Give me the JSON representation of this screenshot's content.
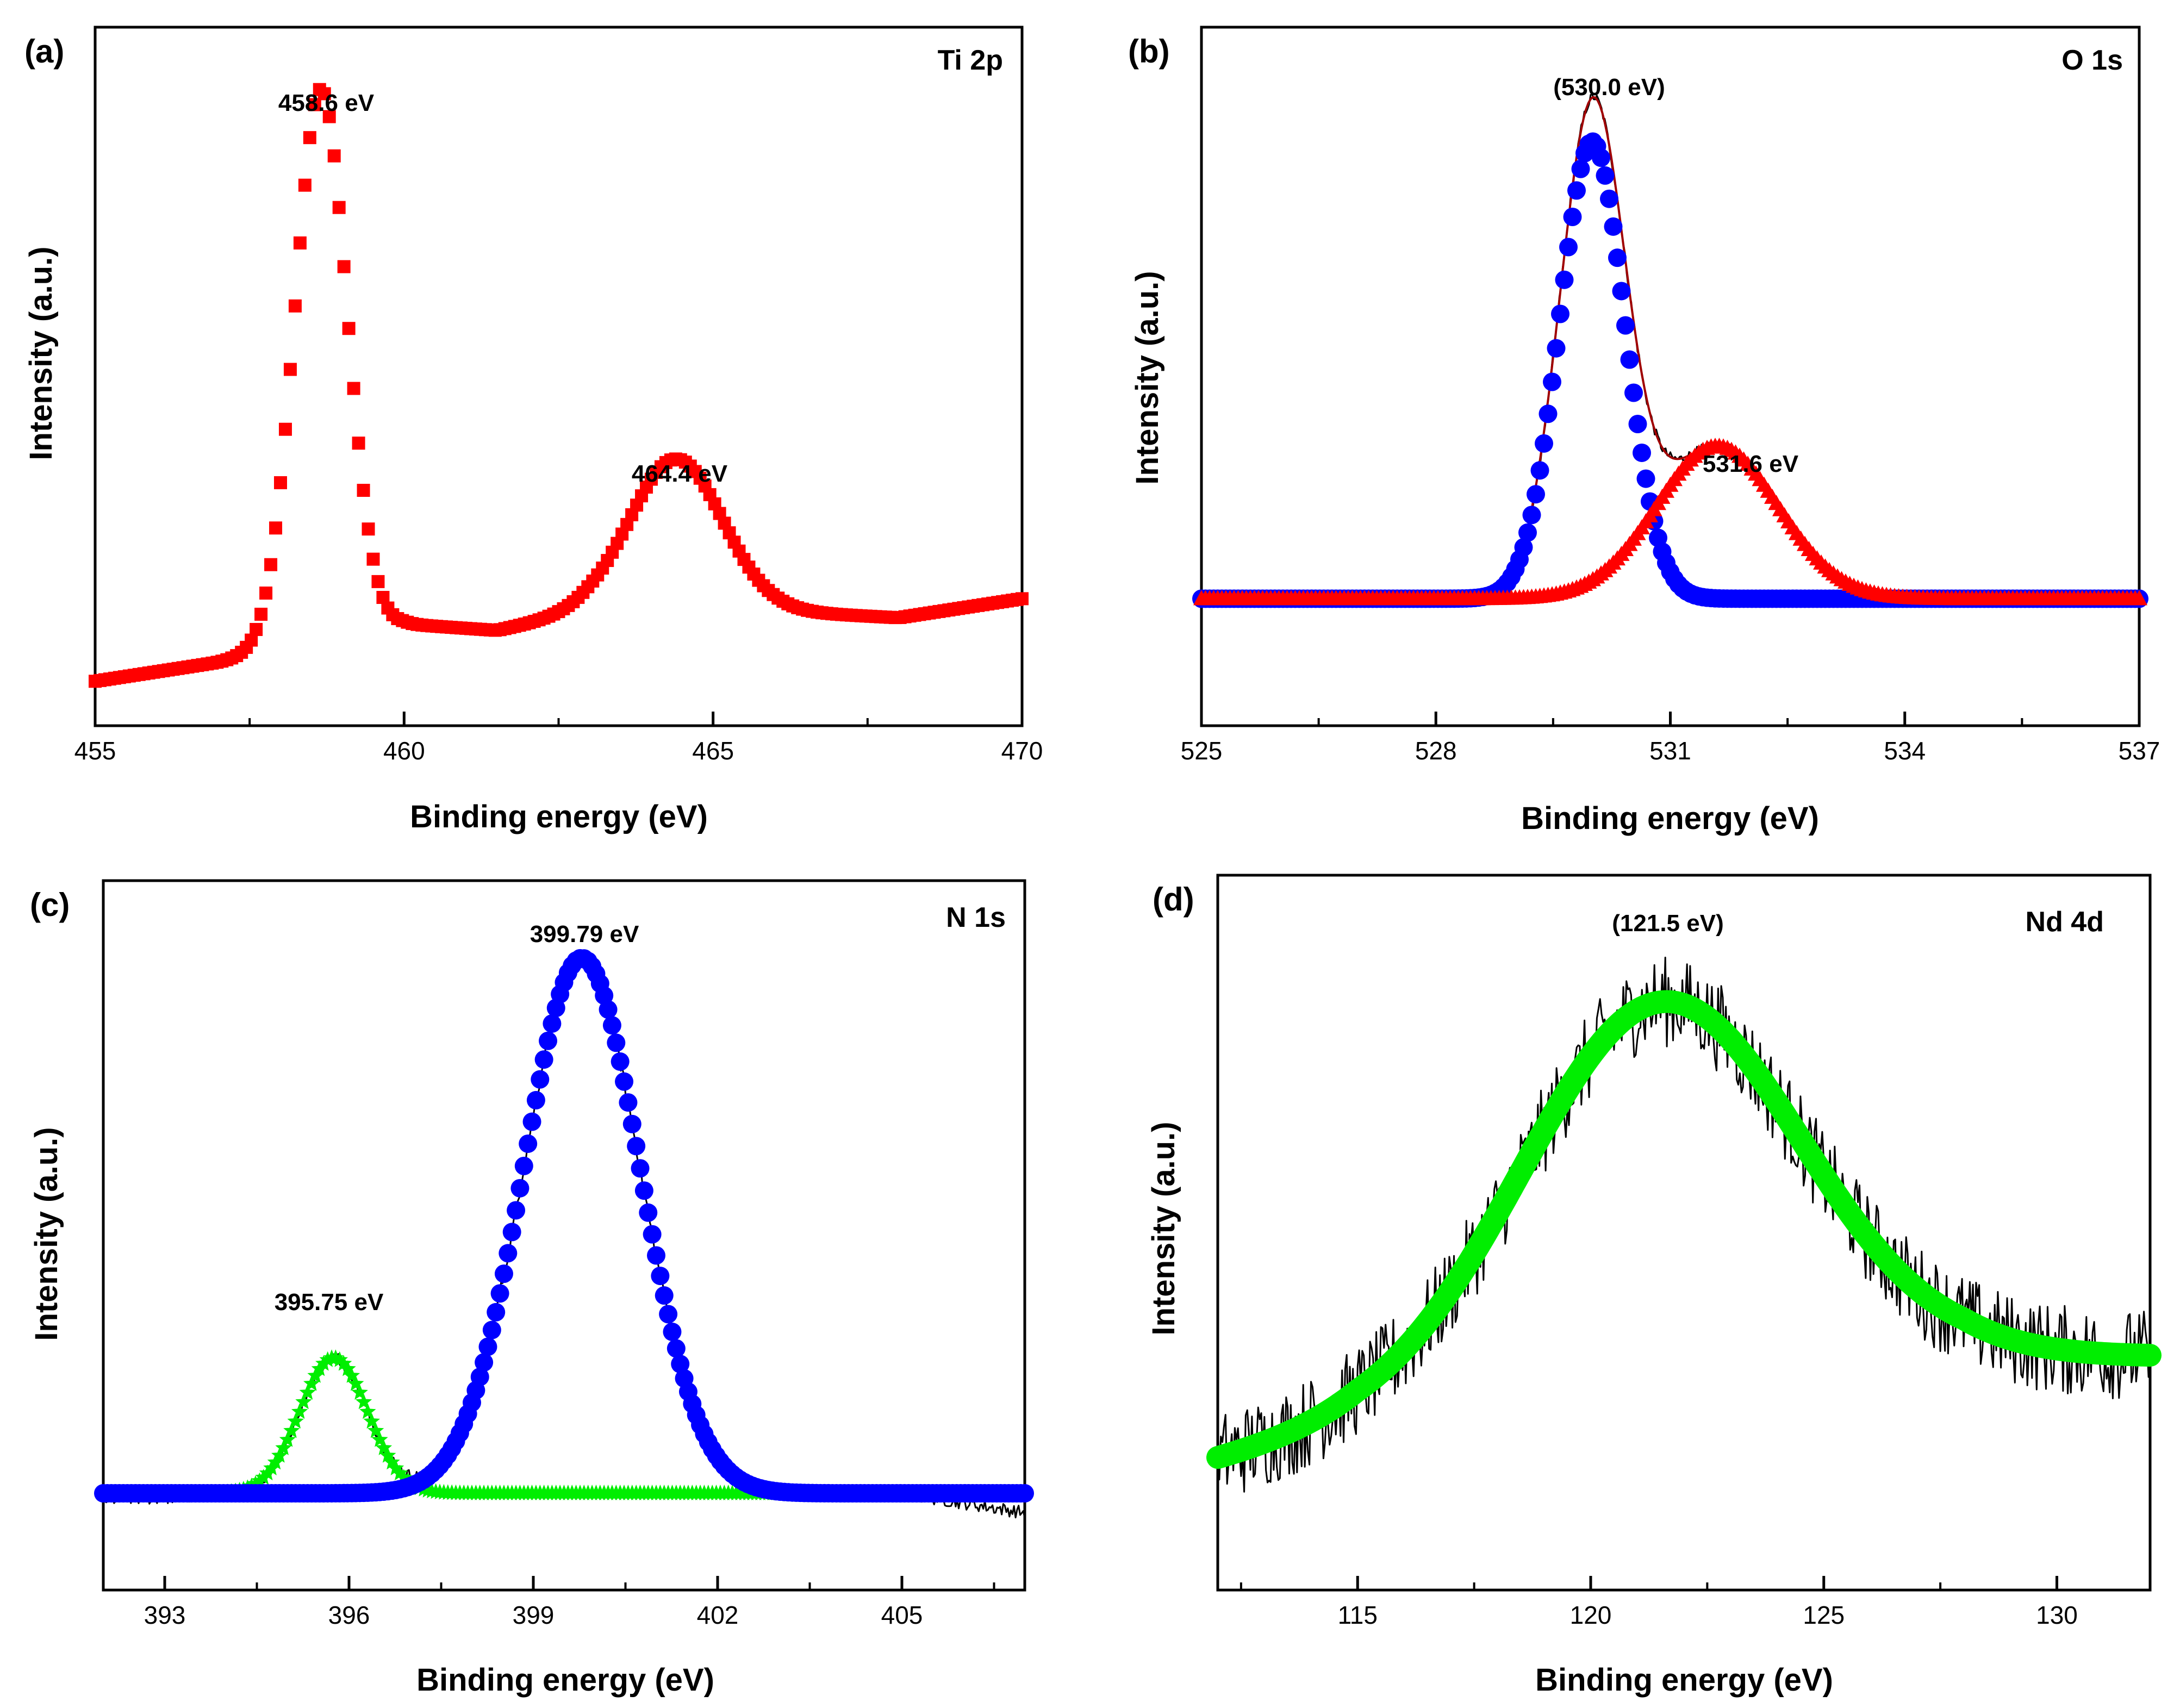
{
  "colors": {
    "red": "#ff0000",
    "blue": "#0000ff",
    "green": "#00ee00",
    "raw": "#000000",
    "envelope": "#a00000"
  },
  "chart_data": [
    {
      "id": "a",
      "type": "scatter",
      "panel_label": "(a)",
      "tag": "Ti 2p",
      "xlabel": "Binding energy (eV)",
      "ylabel": "Intensity (a.u.)",
      "xlim": [
        455,
        470
      ],
      "ylim": [
        0,
        1.1
      ],
      "xticks": [
        455,
        460,
        465,
        470
      ],
      "peaks": [
        {
          "label": "458.6 eV",
          "x": 458.6,
          "y": 1.0
        },
        {
          "label": "464.4 eV",
          "x": 464.4,
          "y": 0.42
        }
      ],
      "series": [
        {
          "name": "Ti 2p",
          "color": "red",
          "marker": "square",
          "components": [
            {
              "kind": "baseline",
              "points": [
                [
                  455,
                  0.07
                ],
                [
                  457,
                  0.1
                ],
                [
                  460,
                  0.16
                ],
                [
                  461.5,
                  0.15
                ],
                [
                  463,
                  0.18
                ],
                [
                  466,
                  0.18
                ],
                [
                  468,
                  0.17
                ],
                [
                  470,
                  0.2
                ]
              ]
            },
            {
              "kind": "gauss",
              "center": 458.65,
              "height": 0.87,
              "sigma": 0.42
            },
            {
              "kind": "gauss",
              "center": 464.4,
              "height": 0.24,
              "sigma": 0.75
            }
          ]
        }
      ]
    },
    {
      "id": "b",
      "type": "scatter",
      "panel_label": "(b)",
      "tag": "O 1s",
      "xlabel": "Binding energy (eV)",
      "ylabel": "Intensity (a.u.)",
      "xlim": [
        525,
        537
      ],
      "ylim": [
        0,
        1.1
      ],
      "xticks": [
        525,
        528,
        531,
        534,
        537
      ],
      "peaks": [
        {
          "label": "(530.0 eV)",
          "x": 530.0,
          "y": 1.0
        },
        {
          "label": "531.6 eV",
          "x": 531.6,
          "y": 0.42
        }
      ],
      "series": [
        {
          "name": "raw",
          "color": "raw",
          "marker": "noisy-line",
          "noise": 0.008,
          "components": [
            {
              "kind": "baseline",
              "points": [
                [
                  525,
                  0.2
                ],
                [
                  537,
                  0.2
                ]
              ]
            },
            {
              "kind": "gauss",
              "center": 530.0,
              "height": 0.76,
              "sigma": 0.42
            },
            {
              "kind": "gauss",
              "center": 531.6,
              "height": 0.24,
              "sigma": 0.78
            }
          ]
        },
        {
          "name": "envelope",
          "color": "envelope",
          "marker": "line",
          "components": [
            {
              "kind": "baseline",
              "points": [
                [
                  525,
                  0.2
                ],
                [
                  537,
                  0.2
                ]
              ]
            },
            {
              "kind": "gauss",
              "center": 530.0,
              "height": 0.76,
              "sigma": 0.42
            },
            {
              "kind": "gauss",
              "center": 531.6,
              "height": 0.24,
              "sigma": 0.78
            }
          ]
        },
        {
          "name": "530.0 component",
          "color": "blue",
          "marker": "circle",
          "components": [
            {
              "kind": "baseline",
              "points": [
                [
                  525,
                  0.2
                ],
                [
                  537,
                  0.2
                ]
              ]
            },
            {
              "kind": "gauss",
              "center": 530.0,
              "height": 0.72,
              "sigma": 0.42
            }
          ]
        },
        {
          "name": "531.6 component",
          "color": "red",
          "marker": "triangle",
          "components": [
            {
              "kind": "baseline",
              "points": [
                [
                  525,
                  0.2
                ],
                [
                  537,
                  0.2
                ]
              ]
            },
            {
              "kind": "gauss",
              "center": 531.6,
              "height": 0.24,
              "sigma": 0.78
            }
          ]
        }
      ]
    },
    {
      "id": "c",
      "type": "scatter",
      "panel_label": "(c)",
      "tag": "N 1s",
      "xlabel": "Binding energy (eV)",
      "ylabel": "Intensity (a.u.)",
      "xlim": [
        392,
        407
      ],
      "ylim": [
        0,
        1.1
      ],
      "xticks": [
        393,
        396,
        399,
        402,
        405
      ],
      "peaks": [
        {
          "label": "395.75 eV",
          "x": 395.75,
          "y": 0.36
        },
        {
          "label": "399.79 eV",
          "x": 399.79,
          "y": 0.98
        }
      ],
      "series": [
        {
          "name": "raw",
          "color": "raw",
          "marker": "noisy-line",
          "noise": 0.01,
          "components": [
            {
              "kind": "baseline",
              "points": [
                [
                  392,
                  0.14
                ],
                [
                  395,
                  0.15
                ],
                [
                  396,
                  0.15
                ],
                [
                  405,
                  0.15
                ],
                [
                  407,
                  0.12
                ]
              ]
            },
            {
              "kind": "gauss",
              "center": 395.75,
              "height": 0.21,
              "sigma": 0.55
            },
            {
              "kind": "gauss",
              "center": 399.79,
              "height": 0.83,
              "sigma": 0.95
            }
          ]
        },
        {
          "name": "395.75 component",
          "color": "green",
          "marker": "star",
          "components": [
            {
              "kind": "baseline",
              "points": [
                [
                  392,
                  0.15
                ],
                [
                  407,
                  0.15
                ]
              ]
            },
            {
              "kind": "gauss",
              "center": 395.75,
              "height": 0.21,
              "sigma": 0.55
            }
          ]
        },
        {
          "name": "399.79 component",
          "color": "blue",
          "marker": "circle",
          "components": [
            {
              "kind": "baseline",
              "points": [
                [
                  392,
                  0.15
                ],
                [
                  407,
                  0.15
                ]
              ]
            },
            {
              "kind": "gauss",
              "center": 399.79,
              "height": 0.83,
              "sigma": 0.95
            }
          ]
        }
      ]
    },
    {
      "id": "d",
      "type": "scatter",
      "panel_label": "(d)",
      "tag": "Nd 4d",
      "xlabel": "Binding energy (eV)",
      "ylabel": "Intensity (a.u.)",
      "xlim": [
        112,
        132
      ],
      "ylim": [
        0,
        1.1
      ],
      "xticks": [
        115,
        120,
        125,
        130
      ],
      "peaks": [
        {
          "label": "(121.5 eV)",
          "x": 121.5,
          "y": 0.9
        }
      ],
      "series": [
        {
          "name": "raw",
          "color": "raw",
          "marker": "noisy-line",
          "noise": 0.07,
          "components": [
            {
              "kind": "baseline",
              "points": [
                [
                  112,
                  0.2
                ],
                [
                  115,
                  0.25
                ],
                [
                  128,
                  0.36
                ],
                [
                  132,
                  0.36
                ]
              ]
            },
            {
              "kind": "gauss",
              "center": 121.5,
              "height": 0.6,
              "sigma": 3.0
            }
          ]
        },
        {
          "name": "fit",
          "color": "green",
          "marker": "thick-line",
          "components": [
            {
              "kind": "baseline",
              "points": [
                [
                  112,
                  0.2
                ],
                [
                  115,
                  0.25
                ],
                [
                  128,
                  0.36
                ],
                [
                  132,
                  0.36
                ]
              ]
            },
            {
              "kind": "gauss",
              "center": 121.5,
              "height": 0.6,
              "sigma": 3.0
            }
          ]
        }
      ]
    }
  ]
}
